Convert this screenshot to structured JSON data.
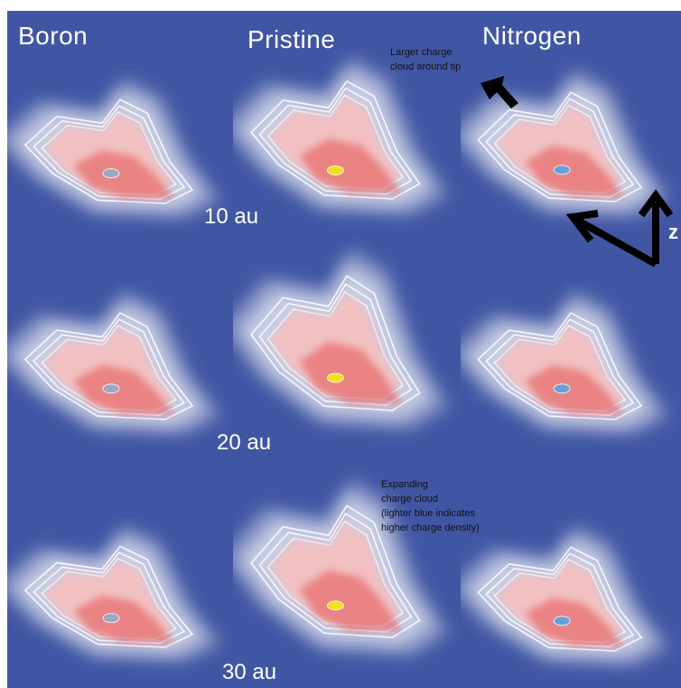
{
  "columns": {
    "boron": "Boron",
    "pristine": "Pristine",
    "nitrogen": "Nitrogen"
  },
  "rows": {
    "r1": "10 au",
    "r2": "20 au",
    "r3": "30 au"
  },
  "annotations": {
    "tip_line1": "Larger charge",
    "tip_line2": "cloud around tip",
    "expand_line1": "Expanding",
    "expand_line2": "charge cloud",
    "expand_line3": "(lighter blue indicates",
    "expand_line4": "higher charge density)"
  },
  "axis": {
    "z_label": "z"
  },
  "colors": {
    "background": "#4156a3",
    "cloud_core": "#e86a6a",
    "cloud_mid": "#f4c0c0",
    "cloud_halo": "#ffffff",
    "boron_atom": "#9aa8c0",
    "pristine_atom": "#f0e020",
    "nitrogen_atom": "#6aa0d8"
  }
}
